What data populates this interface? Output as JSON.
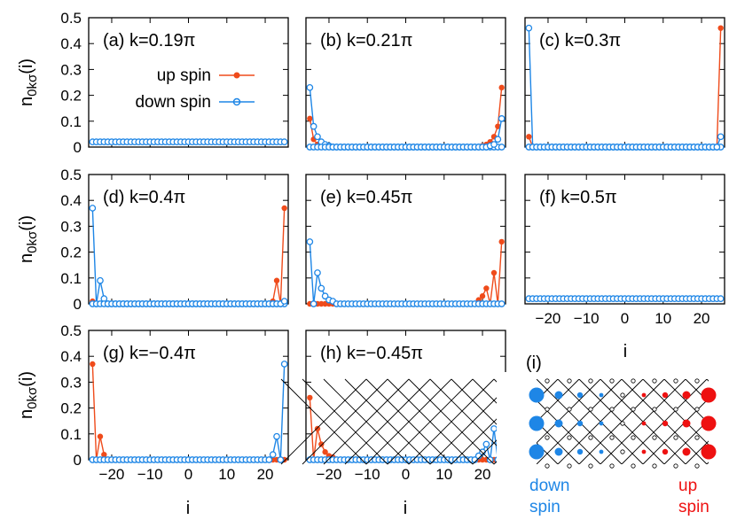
{
  "colors": {
    "up": "#ef4b1b",
    "down": "#1e86e6",
    "lattice_up": "#ee1111",
    "lattice_down": "#1e86e6"
  },
  "y_axis_label": "n",
  "y_axis_sub": "0kσ",
  "y_axis_arg": "(i)",
  "x_axis_label": "i",
  "legend": {
    "up": "up spin",
    "down": "down spin"
  },
  "lattice": {
    "label": "(i)",
    "down_line1": "down",
    "down_line2": "spin",
    "up_line1": "up",
    "up_line2": "spin"
  },
  "chart_data": [
    {
      "type": "line",
      "label": "(a) k=0.19π",
      "xlim": [
        -26,
        26
      ],
      "ylim": [
        0,
        0.5
      ],
      "yticks": [
        "0.5",
        "0.4",
        "0.3",
        "0.2",
        "0.1",
        "0"
      ],
      "series": [
        {
          "name": "up spin",
          "edge": [
            0.02,
            0.02,
            0.02,
            0.02,
            0.02,
            0.02,
            0.02
          ],
          "flat": 0.02
        },
        {
          "name": "down spin",
          "edge": [
            0.02,
            0.02,
            0.02,
            0.02,
            0.02,
            0.02,
            0.02
          ],
          "flat": 0.02
        }
      ]
    },
    {
      "type": "line",
      "label": "(b) k=0.21π",
      "xlim": [
        -26,
        26
      ],
      "ylim": [
        0,
        0.5
      ],
      "series": [
        {
          "name": "up spin",
          "side": "right",
          "edge": [
            0.23,
            0.08,
            0.04,
            0.02,
            0.01,
            0.005,
            0.0
          ]
        },
        {
          "name": "up spin",
          "side": "left",
          "edge": [
            0.11,
            0.03,
            0.01,
            0.005,
            0,
            0,
            0
          ]
        },
        {
          "name": "down spin",
          "side": "left",
          "edge": [
            0.23,
            0.08,
            0.04,
            0.02,
            0.01,
            0.005,
            0.0
          ]
        },
        {
          "name": "down spin",
          "side": "right",
          "edge": [
            0.11,
            0.03,
            0.01,
            0.005,
            0,
            0,
            0
          ]
        }
      ]
    },
    {
      "type": "line",
      "label": "(c) k=0.3π",
      "xlim": [
        -26,
        26
      ],
      "ylim": [
        0,
        0.5
      ],
      "series": [
        {
          "name": "up spin",
          "side": "right",
          "edge": [
            0.46,
            0,
            0,
            0,
            0,
            0,
            0
          ]
        },
        {
          "name": "up spin",
          "side": "left",
          "edge": [
            0.04,
            0,
            0,
            0,
            0,
            0,
            0
          ]
        },
        {
          "name": "down spin",
          "side": "left",
          "edge": [
            0.46,
            0,
            0,
            0,
            0,
            0,
            0
          ]
        },
        {
          "name": "down spin",
          "side": "right",
          "edge": [
            0.04,
            0,
            0,
            0,
            0,
            0,
            0
          ]
        }
      ]
    },
    {
      "type": "line",
      "label": "(d) k=0.4π",
      "xlim": [
        -26,
        26
      ],
      "ylim": [
        0,
        0.5
      ],
      "yticks": [
        "0.5",
        "0.4",
        "0.3",
        "0.2",
        "0.1",
        "0"
      ],
      "series": [
        {
          "name": "up spin",
          "side": "right",
          "edge": [
            0.37,
            0,
            0.09,
            0.01,
            0,
            0,
            0
          ]
        },
        {
          "name": "up spin",
          "side": "left",
          "edge": [
            0.01,
            0,
            0,
            0,
            0,
            0,
            0
          ]
        },
        {
          "name": "down spin",
          "side": "left",
          "edge": [
            0.37,
            0,
            0.09,
            0.02,
            0,
            0,
            0
          ]
        },
        {
          "name": "down spin",
          "side": "right",
          "edge": [
            0.01,
            0,
            0,
            0,
            0,
            0,
            0
          ]
        }
      ]
    },
    {
      "type": "line",
      "label": "(e) k=0.45π",
      "xlim": [
        -26,
        26
      ],
      "ylim": [
        0,
        0.5
      ],
      "series": [
        {
          "name": "up spin",
          "side": "right",
          "edge": [
            0.24,
            0,
            0.12,
            0,
            0.06,
            0.03,
            0.015
          ]
        },
        {
          "name": "down spin",
          "side": "left",
          "edge": [
            0.24,
            0,
            0.12,
            0.06,
            0.03,
            0.015,
            0.01
          ]
        }
      ]
    },
    {
      "type": "line",
      "label": "(f) k=0.5π",
      "xlim": [
        -26,
        26
      ],
      "ylim": [
        0,
        0.5
      ],
      "xticks": [
        "-20",
        "-10",
        "0",
        "10",
        "20"
      ],
      "series": [
        {
          "name": "up spin",
          "edge": [
            0.02,
            0.02,
            0.02,
            0.02,
            0.02,
            0.02,
            0.02
          ],
          "flat": 0.02
        },
        {
          "name": "down spin",
          "edge": [
            0.02,
            0.02,
            0.02,
            0.02,
            0.02,
            0.02,
            0.02
          ],
          "flat": 0.02
        }
      ]
    },
    {
      "type": "line",
      "label": "(g) k=−0.4π",
      "xlim": [
        -26,
        26
      ],
      "ylim": [
        0,
        0.5
      ],
      "yticks": [
        "0.5",
        "0.4",
        "0.3",
        "0.2",
        "0.1",
        "0"
      ],
      "xticks": [
        "-20",
        "-10",
        "0",
        "10",
        "20"
      ],
      "series": [
        {
          "name": "up spin",
          "side": "left",
          "edge": [
            0.37,
            0,
            0.09,
            0.02,
            0,
            0,
            0
          ]
        },
        {
          "name": "down spin",
          "side": "right",
          "edge": [
            0.37,
            0,
            0.09,
            0.02,
            0,
            0,
            0
          ]
        }
      ]
    },
    {
      "type": "line",
      "label": "(h) k=−0.45π",
      "xlim": [
        -26,
        26
      ],
      "ylim": [
        0,
        0.5
      ],
      "xticks": [
        "-20",
        "-10",
        "0",
        "10",
        "20"
      ],
      "series": [
        {
          "name": "up spin",
          "side": "left",
          "edge": [
            0.24,
            0,
            0.12,
            0.06,
            0.03,
            0.015,
            0.01
          ]
        },
        {
          "name": "down spin",
          "side": "right",
          "edge": [
            0.24,
            0,
            0.12,
            0,
            0.06,
            0.03,
            0.015
          ]
        }
      ]
    }
  ]
}
